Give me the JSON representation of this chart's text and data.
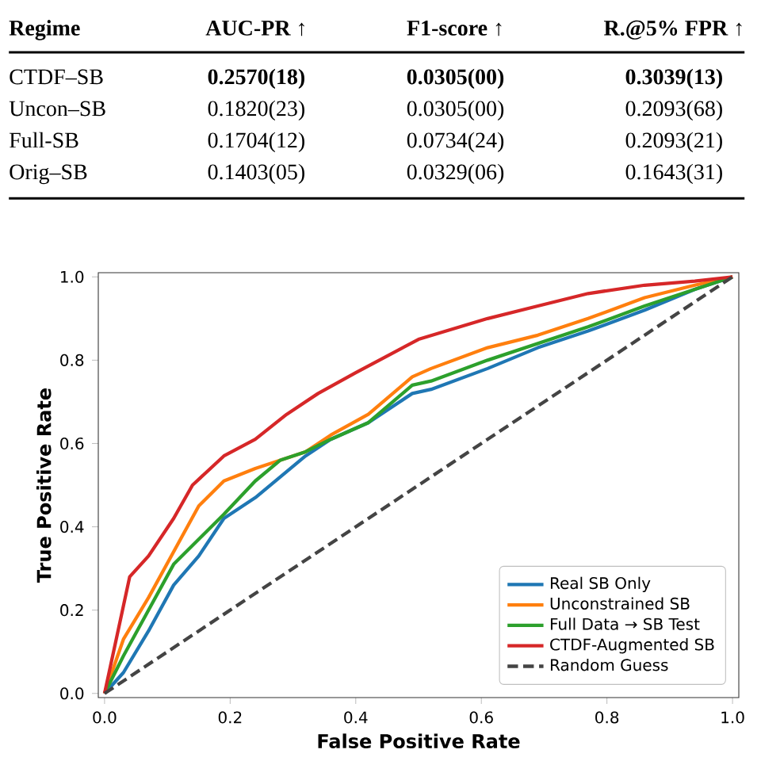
{
  "chart_data": [
    {
      "type": "other",
      "categories": [
        "Regime",
        "AUC-PR ↑",
        "F1-score ↑",
        "R.@5% FPR ↑"
      ],
      "annotations": [
        "CTDF–SB",
        "**0.2570(18)**",
        "**0.0305(00)**",
        "**0.3039(13)**",
        "Uncon–SB",
        "0.1820(23)",
        "0.0305(00)",
        "0.2093(68)",
        "Full-SB",
        "0.1704(12)",
        "0.0734(24)",
        "0.2093(21)",
        "Orig–SB",
        "0.1403(05)",
        "0.0329(06)",
        "0.1643(31)"
      ]
    },
    {
      "type": "line",
      "xlabel": "False Positive Rate",
      "ylabel": "True Positive Rate",
      "xlim": [
        -0.01,
        1.01
      ],
      "ylim": [
        -0.01,
        1.01
      ],
      "xticks": [
        {
          "value": 0,
          "label": "0.0"
        },
        {
          "value": 0.2,
          "label": "0.2"
        },
        {
          "value": 0.4,
          "label": "0.4"
        },
        {
          "value": 0.6,
          "label": "0.6"
        },
        {
          "value": 0.8,
          "label": "0.8"
        },
        {
          "value": 1,
          "label": "1.0"
        }
      ],
      "yticks": [
        {
          "value": 0,
          "label": "0.0"
        },
        {
          "value": 0.2,
          "label": "0.2"
        },
        {
          "value": 0.4,
          "label": "0.4"
        },
        {
          "value": 0.6,
          "label": "0.6"
        },
        {
          "value": 0.8,
          "label": "0.8"
        },
        {
          "value": 1,
          "label": "1.0"
        }
      ],
      "legend": "bottom right",
      "series": [
        {
          "name": "Real SB Only",
          "color": "#1f77b4",
          "x": [
            0,
            0.03,
            0.07,
            0.11,
            0.15,
            0.19,
            0.24,
            0.28,
            0.32,
            0.36,
            0.42,
            0.49,
            0.52,
            0.61,
            0.69,
            0.77,
            0.86,
            0.94,
            1
          ],
          "values": [
            0,
            0.05,
            0.15,
            0.26,
            0.33,
            0.42,
            0.47,
            0.52,
            0.57,
            0.61,
            0.65,
            0.72,
            0.73,
            0.78,
            0.83,
            0.87,
            0.92,
            0.97,
            1
          ]
        },
        {
          "name": "Unconstrained SB",
          "color": "#ff7f0e",
          "x": [
            0,
            0.03,
            0.07,
            0.11,
            0.15,
            0.19,
            0.24,
            0.32,
            0.36,
            0.42,
            0.49,
            0.52,
            0.61,
            0.69,
            0.77,
            0.86,
            0.94,
            1
          ],
          "values": [
            0,
            0.13,
            0.23,
            0.34,
            0.45,
            0.51,
            0.54,
            0.58,
            0.62,
            0.67,
            0.76,
            0.78,
            0.83,
            0.86,
            0.9,
            0.95,
            0.98,
            1
          ]
        },
        {
          "name": "Full Data → SB Test",
          "color": "#2ca02c",
          "x": [
            0,
            0.03,
            0.07,
            0.11,
            0.15,
            0.19,
            0.24,
            0.28,
            0.32,
            0.36,
            0.42,
            0.49,
            0.52,
            0.61,
            0.69,
            0.77,
            0.86,
            0.94,
            1
          ],
          "values": [
            0,
            0.09,
            0.2,
            0.31,
            0.37,
            0.43,
            0.51,
            0.56,
            0.58,
            0.61,
            0.65,
            0.74,
            0.75,
            0.8,
            0.84,
            0.88,
            0.93,
            0.97,
            1
          ]
        },
        {
          "name": "CTDF-Augmented SB",
          "color": "#d62728",
          "x": [
            0,
            0.02,
            0.04,
            0.07,
            0.11,
            0.14,
            0.19,
            0.24,
            0.29,
            0.34,
            0.4,
            0.45,
            0.5,
            0.61,
            0.69,
            0.77,
            0.86,
            0.94,
            1
          ],
          "values": [
            0,
            0.14,
            0.28,
            0.33,
            0.42,
            0.5,
            0.57,
            0.61,
            0.67,
            0.72,
            0.77,
            0.81,
            0.85,
            0.9,
            0.93,
            0.96,
            0.98,
            0.99,
            1
          ]
        },
        {
          "name": "Random Guess",
          "color": "#444444",
          "line_style": "dashed",
          "x": [
            0,
            1
          ],
          "values": [
            0,
            1
          ]
        }
      ]
    }
  ]
}
